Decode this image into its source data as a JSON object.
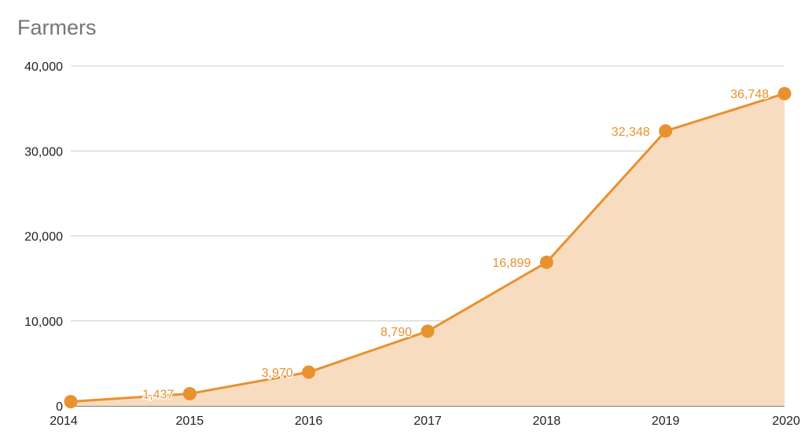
{
  "chart_data": {
    "type": "area",
    "title": "Farmers",
    "xlabel": "",
    "ylabel": "",
    "x": [
      "2014",
      "2015",
      "2016",
      "2017",
      "2018",
      "2019",
      "2020"
    ],
    "values": [
      500,
      1437,
      3970,
      8790,
      16899,
      32348,
      36748
    ],
    "data_labels": [
      "",
      "1,437",
      "3,970",
      "8,790",
      "16,899",
      "32,348",
      "36,748"
    ],
    "y_ticks": [
      0,
      10000,
      20000,
      30000,
      40000
    ],
    "y_tick_labels": [
      "0",
      "10,000",
      "20,000",
      "30,000",
      "40,000"
    ],
    "ylim": [
      0,
      40000
    ],
    "grid": true,
    "legend": "none",
    "colors": {
      "line": "#e8912f",
      "fill": "#f8dcc0",
      "label": "#e8912f",
      "grid": "#cccccc"
    }
  }
}
